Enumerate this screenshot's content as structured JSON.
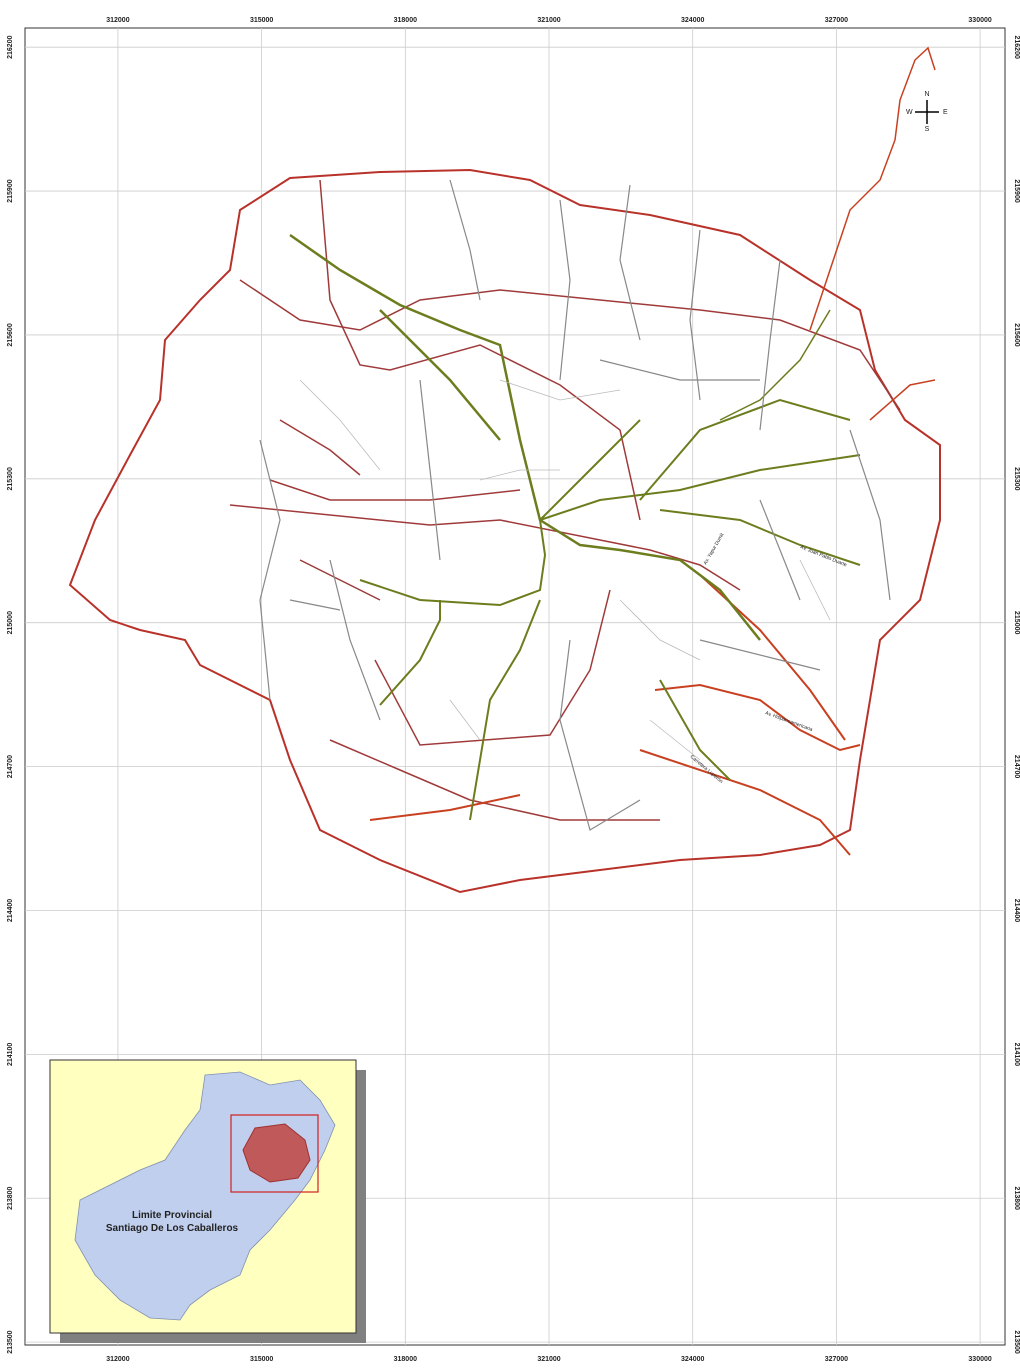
{
  "map": {
    "xlim": [
      310060,
      330520
    ],
    "ylim": [
      213494,
      216240
    ],
    "xticks": [
      312000,
      315000,
      318000,
      321000,
      324000,
      327000,
      330000
    ],
    "yticks": [
      216200,
      215900,
      215600,
      215300,
      215000,
      214700,
      214400,
      214100,
      213800,
      213500
    ],
    "compass": {
      "n": "N",
      "e": "E",
      "s": "S",
      "w": "W"
    },
    "streets": [
      "Av. Juan Pablo Duarte",
      "Av. Hispanoamericana",
      "Av. Yapur Dumit",
      "Carretera Luperón"
    ],
    "inset": {
      "line1": "Limite Provincial",
      "line2": "Santiago De Los Caballeros"
    }
  }
}
